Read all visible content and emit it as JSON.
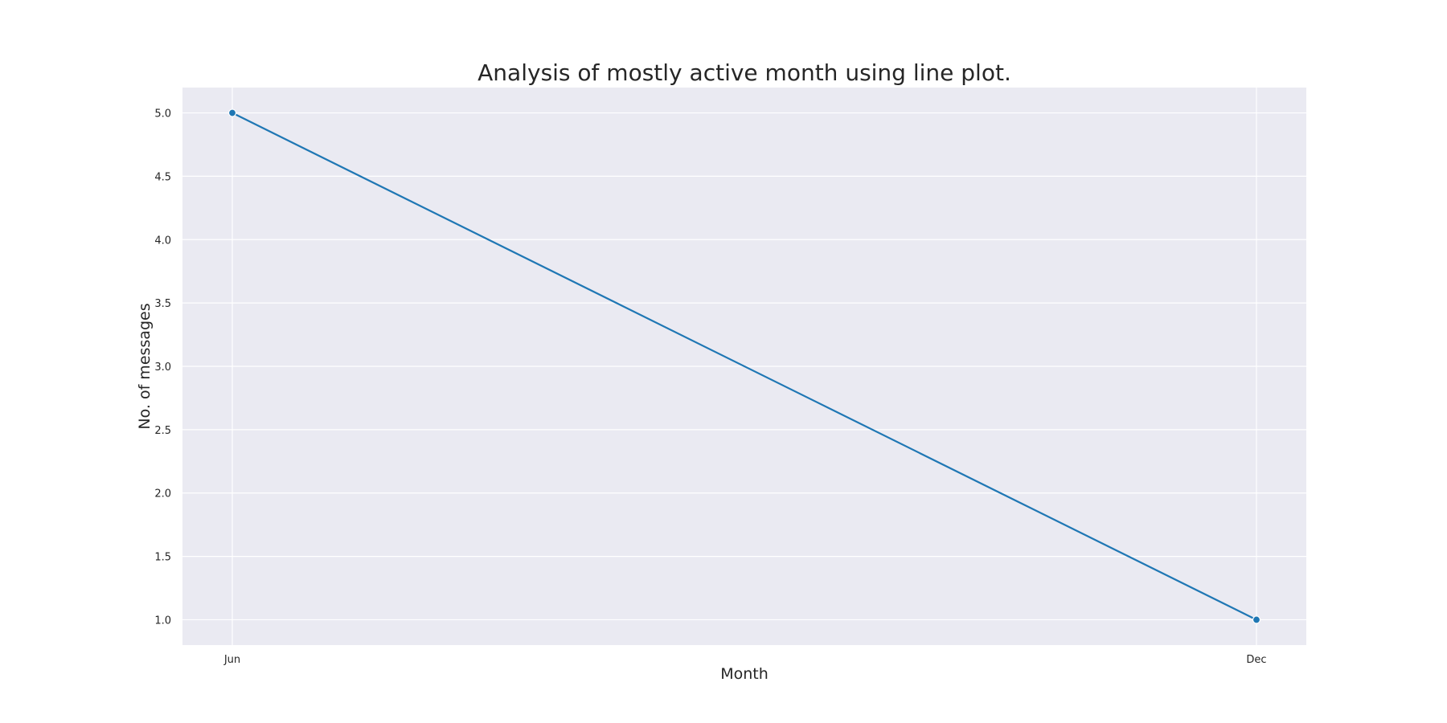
{
  "chart_data": {
    "type": "line",
    "title": "Analysis of mostly active month using line plot.",
    "xlabel": "Month",
    "ylabel": "No. of messages",
    "categories": [
      "Jun",
      "Dec"
    ],
    "values": [
      5,
      1
    ],
    "ylim": [
      0.8,
      5.2
    ],
    "yticks": [
      1.0,
      1.5,
      2.0,
      2.5,
      3.0,
      3.5,
      4.0,
      4.5,
      5.0
    ],
    "grid": true,
    "colors": {
      "line": "#1f77b4",
      "background": "#eaeaf2",
      "grid": "#ffffff"
    }
  }
}
